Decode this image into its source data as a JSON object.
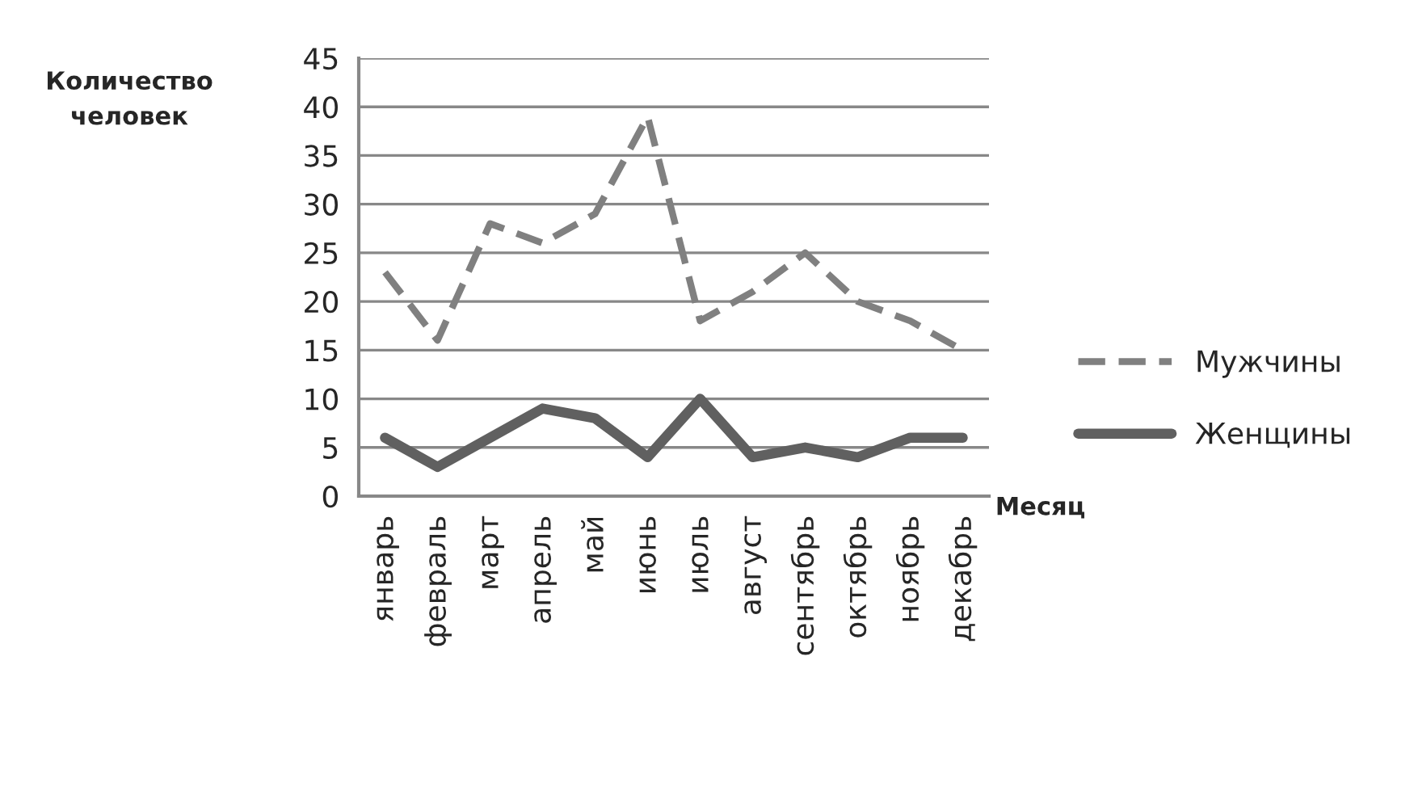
{
  "chart_data": {
    "type": "line",
    "xlabel": "Месяц",
    "ylabel": "Количество\nчеловек",
    "categories": [
      "январь",
      "февраль",
      "март",
      "апрель",
      "май",
      "июнь",
      "июль",
      "август",
      "сентябрь",
      "октябрь",
      "ноябрь",
      "декабрь"
    ],
    "series": [
      {
        "name": "Мужчины",
        "color": "#808080",
        "line_style": "dashed",
        "values": [
          23,
          16,
          28,
          26,
          29,
          39,
          18,
          21,
          25,
          20,
          18,
          15
        ]
      },
      {
        "name": "Женщины",
        "color": "#606060",
        "line_style": "solid",
        "values": [
          6,
          3,
          6,
          9,
          8,
          4,
          10,
          4,
          5,
          4,
          6,
          6
        ]
      }
    ],
    "ylim": [
      0,
      45
    ],
    "yticks": [
      0,
      5,
      10,
      15,
      20,
      25,
      30,
      35,
      40,
      45
    ],
    "grid": "y",
    "legend": "right",
    "marker": "none"
  }
}
